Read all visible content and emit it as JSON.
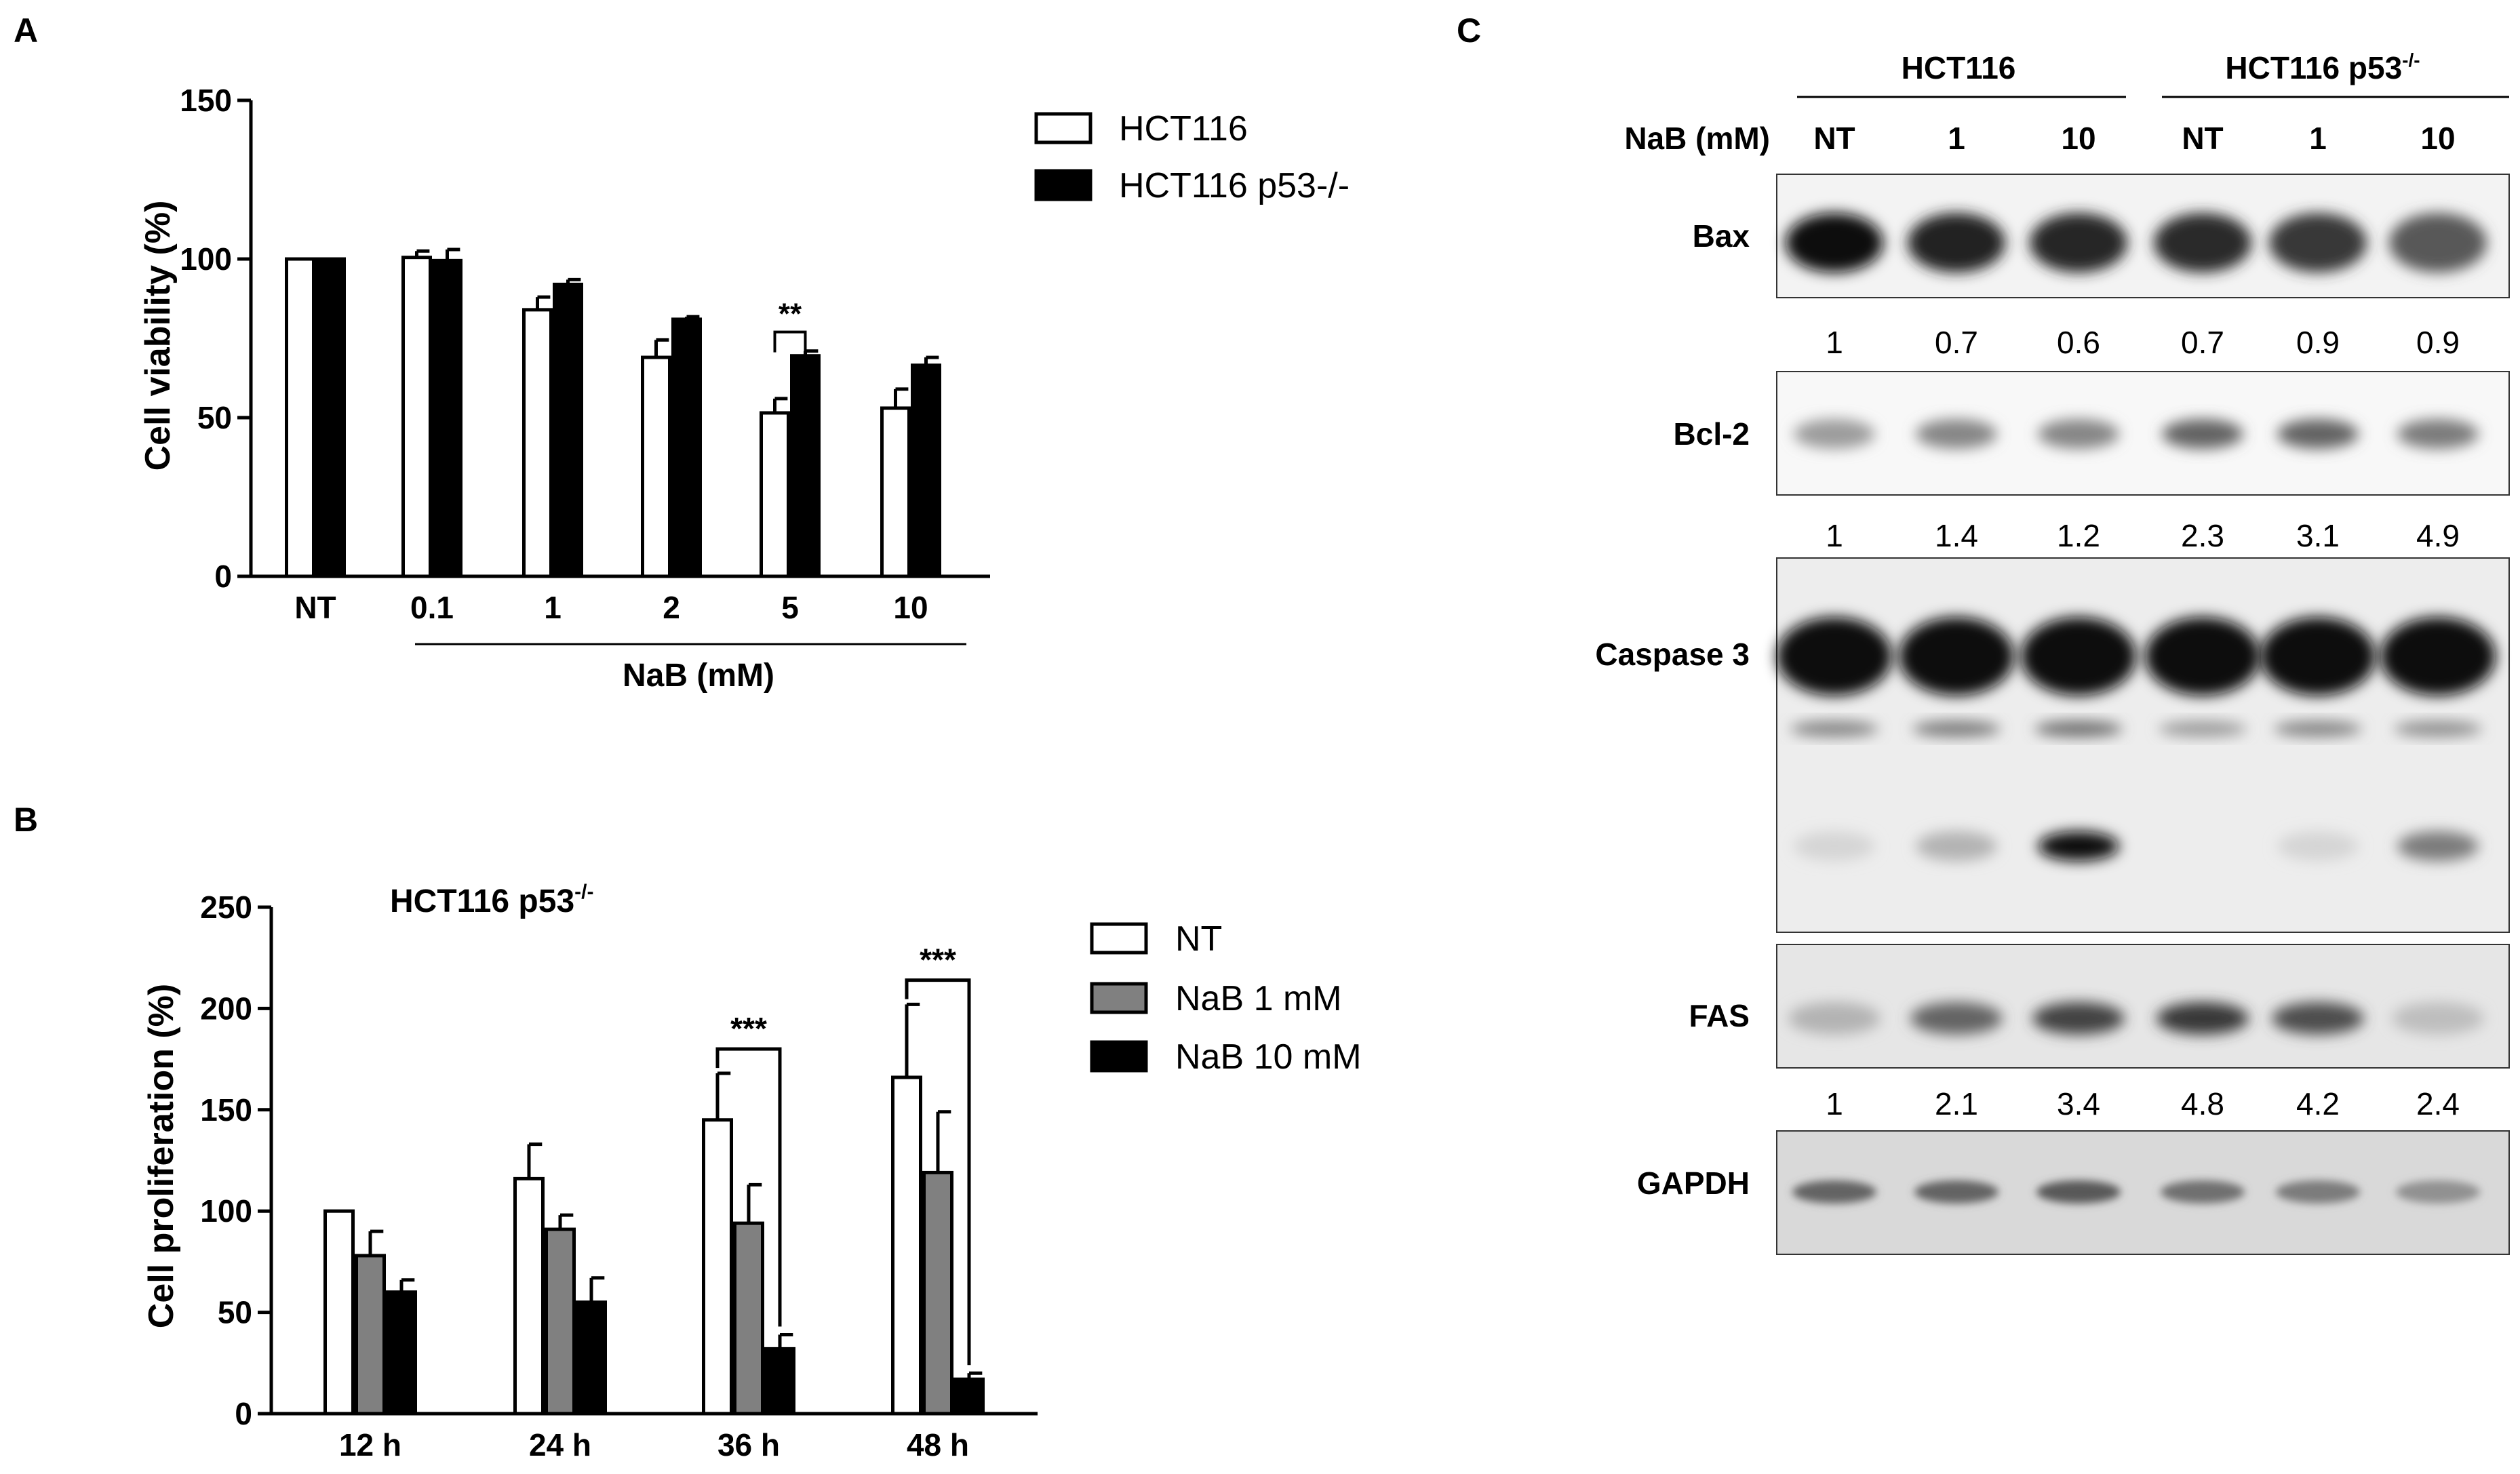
{
  "panels": {
    "A": "A",
    "B": "B",
    "C": "C"
  },
  "chart_data": [
    {
      "panel": "A",
      "type": "bar",
      "title": "",
      "xlabel": "NaB (mM)",
      "ylabel": "Cell viability (%)",
      "ylim": [
        0,
        150
      ],
      "yticks": [
        "0",
        "50",
        "100",
        "150"
      ],
      "categories": [
        "NT",
        "0.1",
        "1",
        "2",
        "5",
        "10"
      ],
      "series": [
        {
          "name": "HCT116",
          "color": "#ffffff",
          "values": [
            100,
            100.5,
            84,
            69,
            51.5,
            53
          ],
          "errors": [
            0,
            2,
            4,
            5.5,
            4.5,
            6
          ]
        },
        {
          "name": "HCT116 p53-/-",
          "color": "#000000",
          "values": [
            100,
            99.5,
            92,
            81,
            69.5,
            66.5
          ],
          "errors": [
            0,
            3.5,
            1.5,
            0.8,
            1.5,
            2.5
          ]
        }
      ],
      "significance": [
        {
          "category": "5",
          "label": "**"
        }
      ],
      "legend_position": "right"
    },
    {
      "panel": "B",
      "type": "bar",
      "title": "HCT116 p53",
      "title_superscript": "-/-",
      "xlabel": "",
      "ylabel": "Cell proliferation (%)",
      "ylim": [
        0,
        250
      ],
      "yticks": [
        "0",
        "50",
        "100",
        "150",
        "200",
        "250"
      ],
      "categories": [
        "12 h",
        "24 h",
        "36 h",
        "48 h"
      ],
      "series": [
        {
          "name": "NT",
          "color": "#ffffff",
          "values": [
            100,
            116,
            145,
            166
          ],
          "errors": [
            0,
            17,
            23,
            36
          ]
        },
        {
          "name": "NaB 1 mM",
          "color": "#808080",
          "values": [
            78,
            91,
            94,
            119
          ],
          "errors": [
            12,
            7,
            19,
            30
          ]
        },
        {
          "name": "NaB 10 mM",
          "color": "#000000",
          "values": [
            60,
            55,
            32,
            17
          ],
          "errors": [
            6,
            12,
            7,
            3
          ]
        }
      ],
      "significance": [
        {
          "category": "36 h",
          "label": "***"
        },
        {
          "category": "48 h",
          "label": "***"
        }
      ],
      "legend_position": "right"
    }
  ],
  "blot": {
    "groups": [
      {
        "label": "HCT116",
        "sup": ""
      },
      {
        "label": "HCT116 p53",
        "sup": "-/-"
      }
    ],
    "row_label": "NaB (mM)",
    "lanes": [
      "NT",
      "1",
      "10",
      "NT",
      "1",
      "10"
    ],
    "proteins": [
      {
        "name": "Bax",
        "quant": [
          "1",
          "0.7",
          "0.6",
          "0.7",
          "0.9",
          "0.9"
        ]
      },
      {
        "name": "Bcl-2",
        "quant": [
          "1",
          "1.4",
          "1.2",
          "2.3",
          "3.1",
          "4.9"
        ]
      },
      {
        "name": "Caspase 3",
        "quant": []
      },
      {
        "name": "FAS",
        "quant": [
          "1",
          "2.1",
          "3.4",
          "4.8",
          "4.2",
          "2.4"
        ]
      },
      {
        "name": "GAPDH",
        "quant": []
      }
    ]
  }
}
